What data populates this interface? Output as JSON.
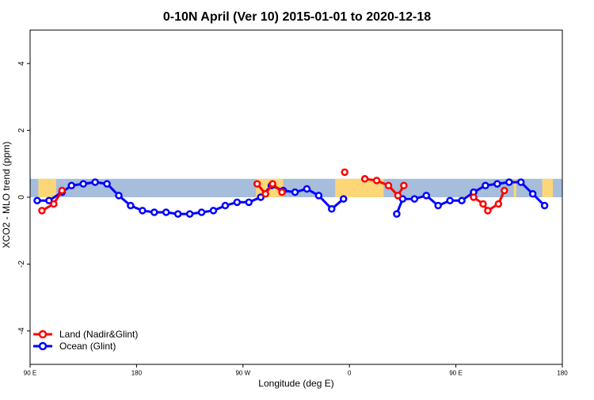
{
  "chart_data": {
    "type": "line",
    "title": "0-10N April (Ver 10)   2015-01-01 to 2020-12-18",
    "xlabel": "Longitude (deg E)",
    "ylabel": "XCO2 - MLO trend (ppm)",
    "xlim": [
      90,
      540
    ],
    "ylim": [
      -5,
      5
    ],
    "x_ticks": [
      {
        "value": 90,
        "label": "90 E"
      },
      {
        "value": 180,
        "label": "180"
      },
      {
        "value": 270,
        "label": "90 W"
      },
      {
        "value": 360,
        "label": "0"
      },
      {
        "value": 450,
        "label": "90 E"
      },
      {
        "value": 540,
        "label": "180"
      }
    ],
    "y_ticks": [
      -4,
      -2,
      0,
      2,
      4
    ],
    "grid": false,
    "legend_position": "bottom-left",
    "background_band": {
      "ymin": 0,
      "ymax": 0.55,
      "ocean_color": "#a6bddb",
      "land_color": "#fdd777"
    },
    "land_spans": [
      [
        97,
        112
      ],
      [
        281,
        304
      ],
      [
        348,
        389
      ],
      [
        499,
        501
      ],
      [
        523,
        532
      ]
    ],
    "series": [
      {
        "name": "Land (Nadir&Glint)",
        "color": "#ff0000",
        "segments": [
          [
            [
              100,
              -0.4
            ],
            [
              110,
              -0.2
            ],
            [
              117,
              0.2
            ]
          ],
          [
            [
              282,
              0.4
            ],
            [
              289,
              0.1
            ],
            [
              295,
              0.4
            ],
            [
              303,
              0.15
            ]
          ],
          [
            [
              356,
              0.75
            ]
          ],
          [
            [
              373,
              0.55
            ],
            [
              383,
              0.5
            ],
            [
              393,
              0.35
            ],
            [
              401,
              0.05
            ],
            [
              406,
              0.35
            ]
          ],
          [
            [
              465,
              0.0
            ],
            [
              473,
              -0.2
            ],
            [
              477,
              -0.4
            ],
            [
              486,
              -0.2
            ],
            [
              491,
              0.2
            ]
          ]
        ]
      },
      {
        "name": "Ocean (Glint)",
        "color": "#0000ff",
        "segments": [
          [
            [
              96,
              -0.1
            ],
            [
              106,
              -0.1
            ],
            [
              117,
              0.15
            ],
            [
              125,
              0.35
            ],
            [
              135,
              0.4
            ],
            [
              145,
              0.45
            ],
            [
              155,
              0.4
            ],
            [
              165,
              0.05
            ],
            [
              175,
              -0.25
            ],
            [
              185,
              -0.4
            ],
            [
              195,
              -0.45
            ],
            [
              205,
              -0.45
            ],
            [
              215,
              -0.5
            ],
            [
              225,
              -0.5
            ],
            [
              235,
              -0.45
            ],
            [
              245,
              -0.4
            ],
            [
              255,
              -0.25
            ],
            [
              265,
              -0.15
            ],
            [
              275,
              -0.15
            ],
            [
              285,
              0.0
            ],
            [
              294,
              0.35
            ],
            [
              304,
              0.2
            ],
            [
              314,
              0.15
            ],
            [
              324,
              0.25
            ],
            [
              334,
              0.05
            ],
            [
              345,
              -0.35
            ],
            [
              355,
              -0.05
            ]
          ],
          [
            [
              400,
              -0.5
            ],
            [
              405,
              -0.05
            ],
            [
              415,
              -0.05
            ],
            [
              425,
              0.05
            ],
            [
              435,
              -0.25
            ],
            [
              445,
              -0.1
            ],
            [
              455,
              -0.1
            ],
            [
              465,
              0.15
            ],
            [
              475,
              0.35
            ],
            [
              485,
              0.4
            ],
            [
              495,
              0.45
            ],
            [
              505,
              0.45
            ],
            [
              515,
              0.1
            ],
            [
              525,
              -0.25
            ]
          ]
        ]
      }
    ]
  }
}
